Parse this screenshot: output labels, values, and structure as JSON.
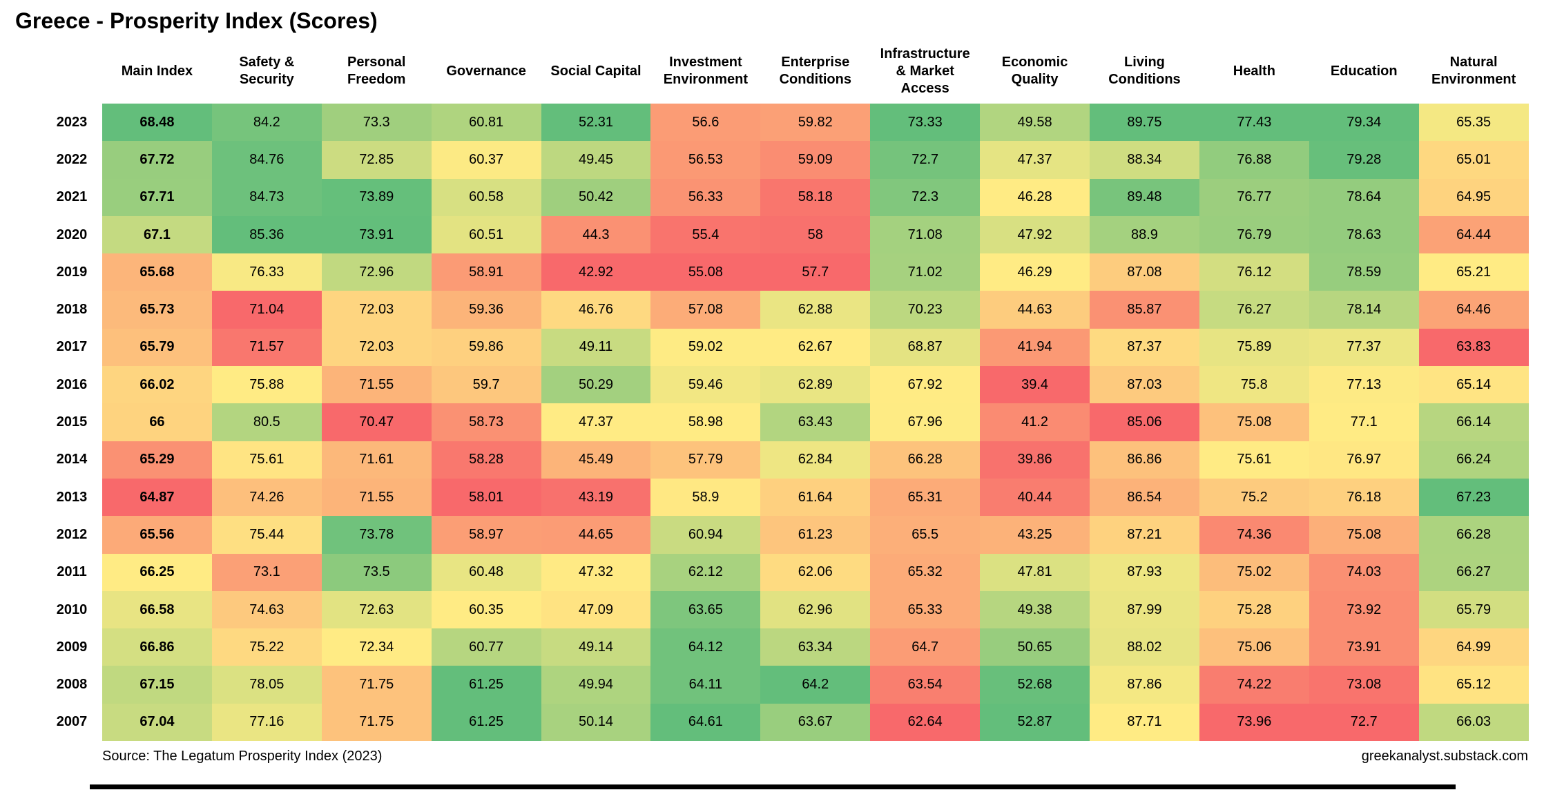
{
  "title": "Greece - Prosperity Index (Scores)",
  "source": "Source: The Legatum Prosperity Index (2023)",
  "watermark": "greekanalyst.substack.com",
  "colors": {
    "scale_min": "#F8696B",
    "scale_mid": "#FFEB84",
    "scale_max": "#63BE7B",
    "text": "#000000",
    "background": "#FFFFFF"
  },
  "chart_data": {
    "type": "heatmap",
    "title": "Greece - Prosperity Index (Scores)",
    "legend_position": "none",
    "grid": false,
    "color_scale": "per-column 3-color scale: column min = red #F8696B, column median = yellow #FFEB84, column max = green #63BE7B",
    "columns": [
      "Main Index",
      "Safety & Security",
      "Personal Freedom",
      "Governance",
      "Social Capital",
      "Investment Environment",
      "Enterprise Conditions",
      "Infrastructure & Market Access",
      "Economic Quality",
      "Living Conditions",
      "Health",
      "Education",
      "Natural Environment"
    ],
    "rows": [
      {
        "year": "2023",
        "values": [
          68.48,
          84.2,
          73.3,
          60.81,
          52.31,
          56.6,
          59.82,
          73.33,
          49.58,
          89.75,
          77.43,
          79.34,
          65.35
        ]
      },
      {
        "year": "2022",
        "values": [
          67.72,
          84.76,
          72.85,
          60.37,
          49.45,
          56.53,
          59.09,
          72.7,
          47.37,
          88.34,
          76.88,
          79.28,
          65.01
        ]
      },
      {
        "year": "2021",
        "values": [
          67.71,
          84.73,
          73.89,
          60.58,
          50.42,
          56.33,
          58.18,
          72.3,
          46.28,
          89.48,
          76.77,
          78.64,
          64.95
        ]
      },
      {
        "year": "2020",
        "values": [
          67.1,
          85.36,
          73.91,
          60.51,
          44.3,
          55.4,
          58,
          71.08,
          47.92,
          88.9,
          76.79,
          78.63,
          64.44
        ]
      },
      {
        "year": "2019",
        "values": [
          65.68,
          76.33,
          72.96,
          58.91,
          42.92,
          55.08,
          57.7,
          71.02,
          46.29,
          87.08,
          76.12,
          78.59,
          65.21
        ]
      },
      {
        "year": "2018",
        "values": [
          65.73,
          71.04,
          72.03,
          59.36,
          46.76,
          57.08,
          62.88,
          70.23,
          44.63,
          85.87,
          76.27,
          78.14,
          64.46
        ]
      },
      {
        "year": "2017",
        "values": [
          65.79,
          71.57,
          72.03,
          59.86,
          49.11,
          59.02,
          62.67,
          68.87,
          41.94,
          87.37,
          75.89,
          77.37,
          63.83
        ]
      },
      {
        "year": "2016",
        "values": [
          66.02,
          75.88,
          71.55,
          59.7,
          50.29,
          59.46,
          62.89,
          67.92,
          39.4,
          87.03,
          75.8,
          77.13,
          65.14
        ]
      },
      {
        "year": "2015",
        "values": [
          66,
          80.5,
          70.47,
          58.73,
          47.37,
          58.98,
          63.43,
          67.96,
          41.2,
          85.06,
          75.08,
          77.1,
          66.14
        ]
      },
      {
        "year": "2014",
        "values": [
          65.29,
          75.61,
          71.61,
          58.28,
          45.49,
          57.79,
          62.84,
          66.28,
          39.86,
          86.86,
          75.61,
          76.97,
          66.24
        ]
      },
      {
        "year": "2013",
        "values": [
          64.87,
          74.26,
          71.55,
          58.01,
          43.19,
          58.9,
          61.64,
          65.31,
          40.44,
          86.54,
          75.2,
          76.18,
          67.23
        ]
      },
      {
        "year": "2012",
        "values": [
          65.56,
          75.44,
          73.78,
          58.97,
          44.65,
          60.94,
          61.23,
          65.5,
          43.25,
          87.21,
          74.36,
          75.08,
          66.28
        ]
      },
      {
        "year": "2011",
        "values": [
          66.25,
          73.1,
          73.5,
          60.48,
          47.32,
          62.12,
          62.06,
          65.32,
          47.81,
          87.93,
          75.02,
          74.03,
          66.27
        ]
      },
      {
        "year": "2010",
        "values": [
          66.58,
          74.63,
          72.63,
          60.35,
          47.09,
          63.65,
          62.96,
          65.33,
          49.38,
          87.99,
          75.28,
          73.92,
          65.79
        ]
      },
      {
        "year": "2009",
        "values": [
          66.86,
          75.22,
          72.34,
          60.77,
          49.14,
          64.12,
          63.34,
          64.7,
          50.65,
          88.02,
          75.06,
          73.91,
          64.99
        ]
      },
      {
        "year": "2008",
        "values": [
          67.15,
          78.05,
          71.75,
          61.25,
          49.94,
          64.11,
          64.2,
          63.54,
          52.68,
          87.86,
          74.22,
          73.08,
          65.12
        ]
      },
      {
        "year": "2007",
        "values": [
          67.04,
          77.16,
          71.75,
          61.25,
          50.14,
          64.61,
          63.67,
          62.64,
          52.87,
          87.71,
          73.96,
          72.7,
          66.03
        ]
      }
    ]
  }
}
